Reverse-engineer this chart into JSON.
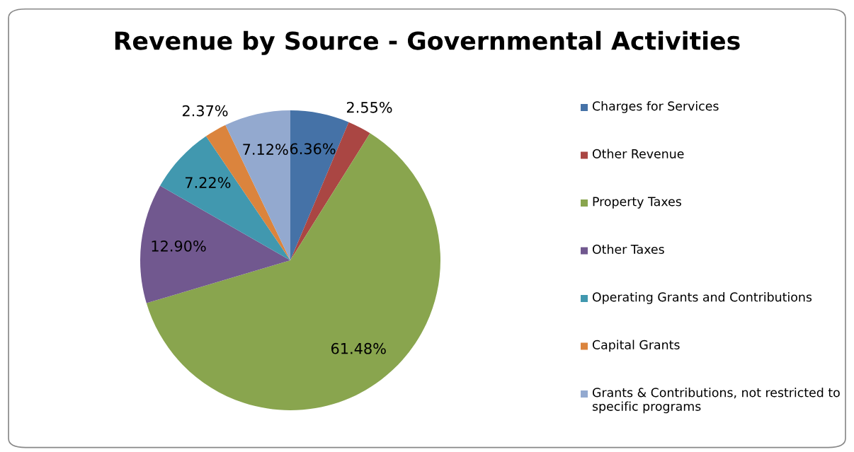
{
  "chart_data": {
    "type": "pie",
    "title": "Revenue by Source - Governmental Activities",
    "categories": [
      "Charges for Services",
      "Other Revenue",
      "Property Taxes",
      "Other Taxes",
      "Operating Grants and Contributions",
      "Capital Grants",
      "Grants & Contributions, not restricted to specific programs"
    ],
    "values": [
      6.36,
      2.55,
      61.48,
      12.9,
      7.22,
      2.37,
      7.12
    ],
    "value_labels": [
      "6.36%",
      "2.55%",
      "61.48%",
      "12.90%",
      "7.22%",
      "2.37%",
      "7.12%"
    ],
    "colors": [
      "#4572a7",
      "#aa4643",
      "#89a54e",
      "#71588f",
      "#4198af",
      "#db843d",
      "#93a9cf"
    ],
    "legend": "right"
  }
}
